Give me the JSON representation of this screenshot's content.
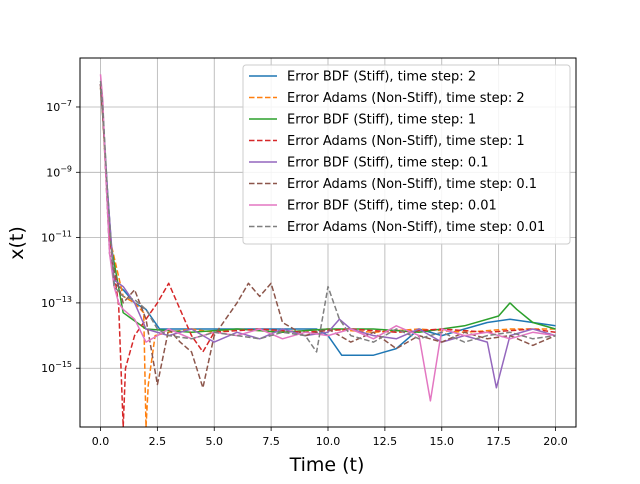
{
  "chart_data": {
    "type": "line",
    "title": "",
    "xlabel": "Time (t)",
    "ylabel": "x(t)",
    "xlim": [
      -0.9,
      20.9
    ],
    "ylim_log10": [
      -16.8,
      -5.5
    ],
    "yscale": "log",
    "grid": true,
    "legend_position": "top-right",
    "x_ticks": [
      0.0,
      2.5,
      5.0,
      7.5,
      10.0,
      12.5,
      15.0,
      17.5,
      20.0
    ],
    "x_tick_labels": [
      "0.0",
      "2.5",
      "5.0",
      "7.5",
      "10.0",
      "12.5",
      "15.0",
      "17.5",
      "20.0"
    ],
    "y_ticks_log10": [
      -15,
      -13,
      -11,
      -9,
      -7
    ],
    "y_tick_labels": [
      "10−15",
      "10−13",
      "10−11",
      "10−9",
      "10−7"
    ],
    "series": [
      {
        "name": "Error BDF (Stiff), time step: 2",
        "color": "#1f77b4",
        "dash": "solid",
        "x": [
          0.0,
          0.1,
          0.3,
          0.6,
          1.0,
          1.5,
          2.0,
          2.6,
          3.5,
          4.5,
          5.5,
          6.5,
          7.5,
          8.5,
          9.5,
          10.0,
          10.6,
          11.0,
          12.0,
          13.0,
          14.0,
          15.0,
          16.0,
          17.0,
          18.0,
          19.0,
          20.0
        ],
        "y_log10": [
          -6.4,
          -7.3,
          -9.5,
          -12.4,
          -12.6,
          -13.0,
          -13.2,
          -13.8,
          -13.8,
          -13.8,
          -13.8,
          -13.8,
          -13.8,
          -13.8,
          -13.8,
          -14.0,
          -14.6,
          -14.6,
          -14.6,
          -14.4,
          -13.8,
          -14.0,
          -13.8,
          -13.6,
          -13.5,
          -13.6,
          -13.7
        ]
      },
      {
        "name": "Error Adams (Non-Stiff), time step: 2",
        "color": "#ff7f0e",
        "dash": "dashed",
        "x": [
          0.0,
          0.1,
          0.4,
          1.0,
          1.5,
          1.9,
          2.0,
          2.1,
          2.4,
          3.0,
          4.0,
          5.0,
          6.0,
          8.0,
          10.0,
          12.0,
          14.0,
          16.0,
          18.0,
          20.0
        ],
        "y_log10": [
          -6.4,
          -7.3,
          -11.0,
          -12.8,
          -13.0,
          -13.3,
          -16.8,
          -15.5,
          -14.0,
          -13.9,
          -13.8,
          -13.9,
          -13.8,
          -13.9,
          -13.8,
          -13.9,
          -13.8,
          -13.9,
          -13.8,
          -13.8
        ]
      },
      {
        "name": "Error BDF (Stiff), time step: 1",
        "color": "#2ca02c",
        "dash": "solid",
        "x": [
          0.0,
          0.1,
          0.4,
          1.0,
          2.0,
          4.0,
          6.0,
          8.0,
          10.0,
          12.0,
          14.0,
          16.0,
          17.5,
          18.0,
          18.3,
          19.0,
          20.0
        ],
        "y_log10": [
          -6.3,
          -7.2,
          -11.0,
          -13.3,
          -13.8,
          -13.9,
          -13.8,
          -13.9,
          -13.8,
          -13.8,
          -13.9,
          -13.7,
          -13.4,
          -13.0,
          -13.2,
          -13.6,
          -13.8
        ]
      },
      {
        "name": "Error Adams (Non-Stiff), time step: 1",
        "color": "#d62728",
        "dash": "dashed",
        "x": [
          0.0,
          0.1,
          0.4,
          0.8,
          1.0,
          1.1,
          1.5,
          2.0,
          2.5,
          3.0,
          3.5,
          4.0,
          4.5,
          5.0,
          7.0,
          9.0,
          11.0,
          13.0,
          15.0,
          17.0,
          19.0,
          20.0
        ],
        "y_log10": [
          -6.3,
          -7.2,
          -11.0,
          -13.1,
          -16.8,
          -15.0,
          -14.0,
          -13.5,
          -13.0,
          -12.4,
          -13.2,
          -14.0,
          -14.5,
          -13.9,
          -13.8,
          -13.9,
          -13.8,
          -13.9,
          -13.8,
          -13.9,
          -13.8,
          -13.9
        ]
      },
      {
        "name": "Error BDF (Stiff), time step: 0.1",
        "color": "#9467bd",
        "dash": "solid",
        "x": [
          0.0,
          0.1,
          0.3,
          0.6,
          1.0,
          1.5,
          2.0,
          3.0,
          4.0,
          5.0,
          6.0,
          7.0,
          8.0,
          9.0,
          10.0,
          10.5,
          11.0,
          12.0,
          13.0,
          14.0,
          15.0,
          16.0,
          17.0,
          17.4,
          18.0,
          19.0,
          20.0
        ],
        "y_log10": [
          -6.3,
          -7.2,
          -9.5,
          -12.3,
          -12.5,
          -13.0,
          -13.8,
          -14.0,
          -13.8,
          -14.2,
          -13.9,
          -14.1,
          -13.8,
          -14.0,
          -13.9,
          -13.5,
          -13.8,
          -14.0,
          -14.1,
          -13.8,
          -14.2,
          -14.0,
          -14.2,
          -15.6,
          -14.0,
          -13.8,
          -14.0
        ]
      },
      {
        "name": "Error Adams (Non-Stiff), time step: 0.1",
        "color": "#8c564b",
        "dash": "dashed",
        "x": [
          0.0,
          0.1,
          0.4,
          1.0,
          1.5,
          2.0,
          2.5,
          3.0,
          3.5,
          4.0,
          4.5,
          5.0,
          5.5,
          6.0,
          6.5,
          7.0,
          7.5,
          8.0,
          9.0,
          10.0,
          11.0,
          12.0,
          13.0,
          14.0,
          15.0,
          16.0,
          17.0,
          18.0,
          19.0,
          20.0
        ],
        "y_log10": [
          -6.3,
          -7.2,
          -11.5,
          -13.0,
          -12.6,
          -13.5,
          -15.5,
          -13.8,
          -14.2,
          -14.5,
          -15.6,
          -14.0,
          -13.5,
          -13.0,
          -12.4,
          -12.8,
          -12.4,
          -13.6,
          -14.0,
          -13.8,
          -14.2,
          -13.9,
          -14.4,
          -14.0,
          -14.2,
          -13.9,
          -14.1,
          -14.0,
          -14.3,
          -14.0
        ]
      },
      {
        "name": "Error BDF (Stiff), time step: 0.01",
        "color": "#e377c2",
        "dash": "solid",
        "x": [
          0.0,
          0.1,
          0.2,
          0.4,
          0.6,
          0.8,
          1.0,
          1.5,
          2.0,
          2.5,
          3.0,
          4.0,
          5.0,
          6.0,
          7.0,
          8.0,
          9.0,
          10.0,
          11.0,
          12.0,
          13.0,
          14.0,
          14.5,
          15.0,
          16.0,
          17.0,
          18.0,
          19.0,
          20.0
        ],
        "y_log10": [
          -6.0,
          -6.8,
          -8.5,
          -11.5,
          -12.5,
          -13.0,
          -13.2,
          -13.5,
          -14.2,
          -14.0,
          -13.8,
          -14.1,
          -13.9,
          -14.0,
          -13.8,
          -14.1,
          -13.9,
          -14.0,
          -13.8,
          -14.1,
          -13.7,
          -14.0,
          -16.0,
          -13.8,
          -14.0,
          -13.9,
          -14.1,
          -13.9,
          -14.0
        ]
      },
      {
        "name": "Error Adams (Non-Stiff), time step: 0.01",
        "color": "#7f7f7f",
        "dash": "dashed",
        "x": [
          0.0,
          0.1,
          0.3,
          0.6,
          1.0,
          1.5,
          2.0,
          2.5,
          3.0,
          4.0,
          5.0,
          6.0,
          7.0,
          8.0,
          9.0,
          9.5,
          10.0,
          10.5,
          11.0,
          12.0,
          13.0,
          14.0,
          15.0,
          16.0,
          17.0,
          18.0,
          19.0,
          20.0
        ],
        "y_log10": [
          -6.2,
          -7.0,
          -9.5,
          -12.5,
          -12.8,
          -12.9,
          -13.2,
          -13.8,
          -14.0,
          -14.1,
          -13.9,
          -14.0,
          -14.1,
          -13.9,
          -14.0,
          -14.5,
          -12.5,
          -13.5,
          -14.0,
          -14.2,
          -13.8,
          -14.1,
          -13.9,
          -14.2,
          -14.0,
          -13.9,
          -14.1,
          -14.0
        ]
      }
    ]
  }
}
